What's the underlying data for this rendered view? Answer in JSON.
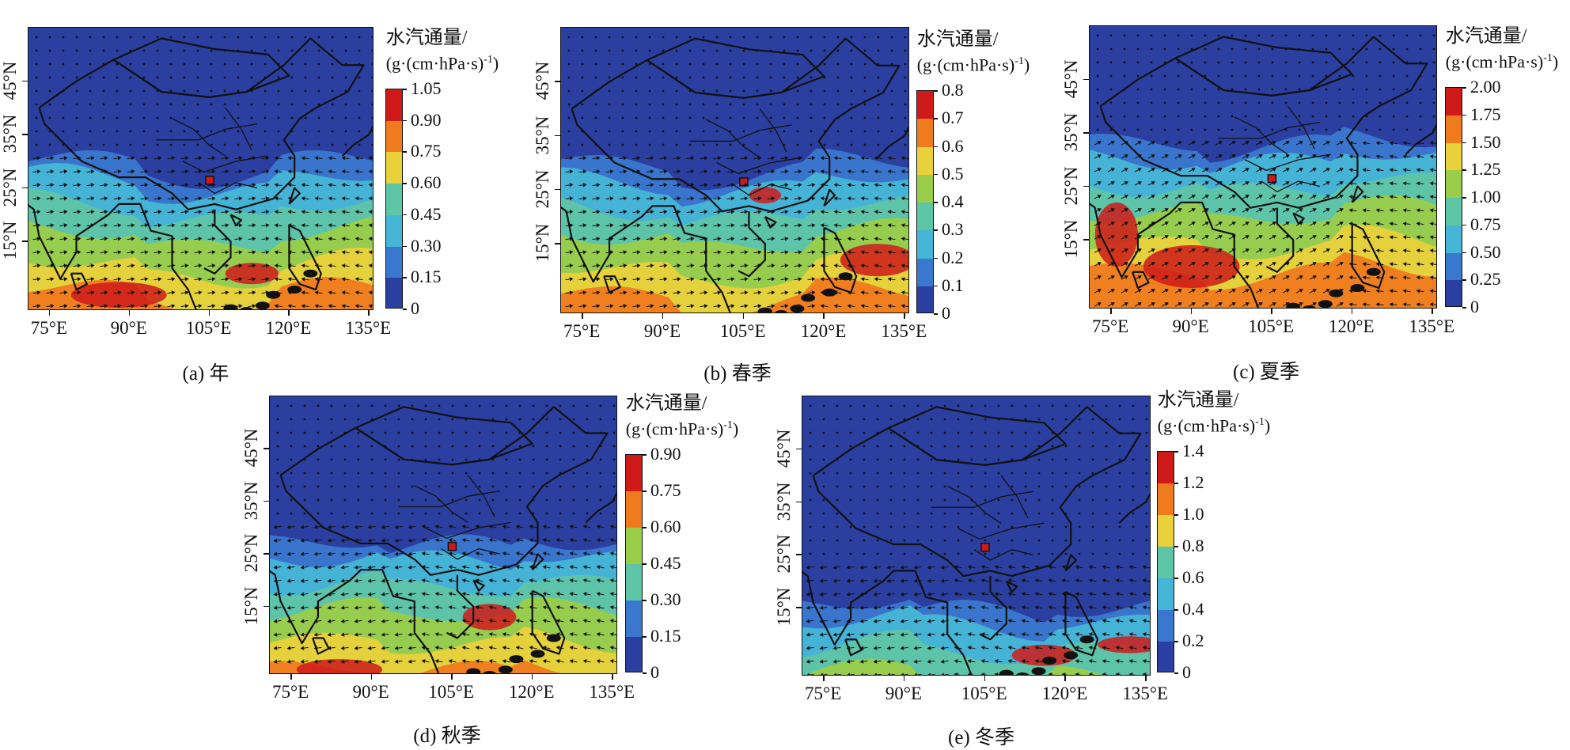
{
  "colorbar_title": "水汽通量/",
  "colorbar_unit": "(g·(cm·hPa·s)",
  "colorbar_unit_sup": "-1",
  "colorbar_unit_close": ")",
  "colors": {
    "low": "#2b3fa0",
    "mid_low": "#3a78cf",
    "mid": "#45b6d6",
    "mid2": "#5fc5a7",
    "mid3": "#9acd4a",
    "high": "#e8d13a",
    "higher": "#f07a1e",
    "max": "#cf1a1a"
  },
  "x_ticks": [
    "75°E",
    "90°E",
    "105°E",
    "120°E",
    "135°E"
  ],
  "y_ticks": [
    "15°N",
    "25°N",
    "35°N",
    "45°N"
  ],
  "panels": [
    {
      "caption": "(a) 年",
      "colorbar_labels": [
        "1.05",
        "0.90",
        "0.75",
        "0.60",
        "0.45",
        "0.30",
        "0.15",
        "0"
      ]
    },
    {
      "caption": "(b) 春季",
      "colorbar_labels": [
        "0.8",
        "0.7",
        "0.6",
        "0.5",
        "0.4",
        "0.3",
        "0.2",
        "0.1",
        "0"
      ]
    },
    {
      "caption": "(c) 夏季",
      "colorbar_labels": [
        "2.00",
        "1.75",
        "1.50",
        "1.25",
        "1.00",
        "0.75",
        "0.50",
        "0.25",
        "0"
      ]
    },
    {
      "caption": "(d) 秋季",
      "colorbar_labels": [
        "0.90",
        "0.75",
        "0.60",
        "0.45",
        "0.30",
        "0.15",
        "0"
      ]
    },
    {
      "caption": "(e) 冬季",
      "colorbar_labels": [
        "1.4",
        "1.2",
        "1.0",
        "0.8",
        "0.6",
        "0.4",
        "0.2",
        "0"
      ]
    }
  ]
}
